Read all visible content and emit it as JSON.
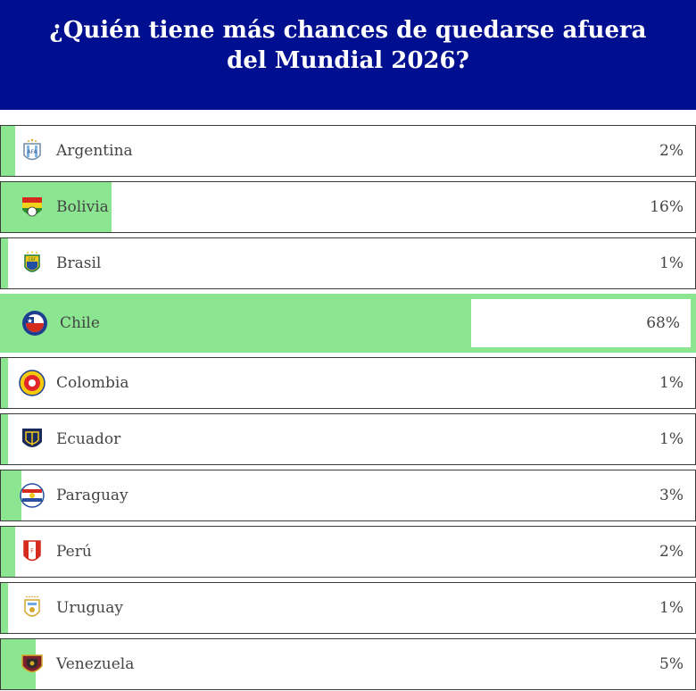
{
  "poll": {
    "question": "¿Quién tiene más chances de quedarse afuera del Mundial 2026?",
    "selected": "Chile",
    "options": [
      {
        "team": "Argentina",
        "percent_label": "2%",
        "percent": 2,
        "crest_icon": "argentina-crest-icon"
      },
      {
        "team": "Bolivia",
        "percent_label": "16%",
        "percent": 16,
        "crest_icon": "bolivia-crest-icon"
      },
      {
        "team": "Brasil",
        "percent_label": "1%",
        "percent": 1,
        "crest_icon": "brasil-crest-icon"
      },
      {
        "team": "Chile",
        "percent_label": "68%",
        "percent": 68,
        "crest_icon": "chile-crest-icon"
      },
      {
        "team": "Colombia",
        "percent_label": "1%",
        "percent": 1,
        "crest_icon": "colombia-crest-icon"
      },
      {
        "team": "Ecuador",
        "percent_label": "1%",
        "percent": 1,
        "crest_icon": "ecuador-crest-icon"
      },
      {
        "team": "Paraguay",
        "percent_label": "3%",
        "percent": 3,
        "crest_icon": "paraguay-crest-icon"
      },
      {
        "team": "Perú",
        "percent_label": "2%",
        "percent": 2,
        "crest_icon": "peru-crest-icon"
      },
      {
        "team": "Uruguay",
        "percent_label": "1%",
        "percent": 1,
        "crest_icon": "uruguay-crest-icon"
      },
      {
        "team": "Venezuela",
        "percent_label": "5%",
        "percent": 5,
        "crest_icon": "venezuela-crest-icon"
      }
    ]
  },
  "colors": {
    "header_bg": "#000f8f",
    "bar_fill": "#8be591",
    "row_border": "#3a3a3a"
  }
}
